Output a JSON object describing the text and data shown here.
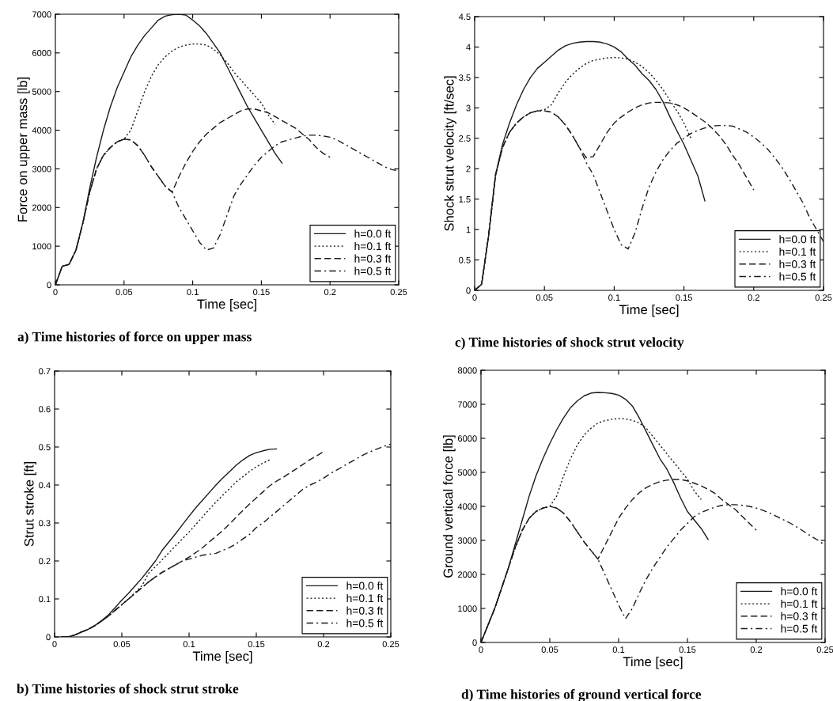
{
  "chart_data": [
    {
      "type": "line",
      "title": "a) Time histories of force on upper mass",
      "xlabel": "Time [sec]",
      "ylabel": "Force on upper mass [lb]",
      "x": [
        0,
        0.005,
        0.01,
        0.015,
        0.02,
        0.025,
        0.03,
        0.035,
        0.04,
        0.045,
        0.05,
        0.055,
        0.06,
        0.065,
        0.07,
        0.075,
        0.08,
        0.085,
        0.09,
        0.095,
        0.1,
        0.105,
        0.11,
        0.115,
        0.12,
        0.125,
        0.13,
        0.135,
        0.14,
        0.145,
        0.15,
        0.155,
        0.16,
        0.165,
        0.17,
        0.175,
        0.18,
        0.185,
        0.19,
        0.195,
        0.2,
        0.205,
        0.21,
        0.215,
        0.22,
        0.225,
        0.23,
        0.235,
        0.24,
        0.245,
        0.25
      ],
      "xlim": [
        0,
        0.25
      ],
      "xticks": [
        0,
        0.05,
        0.1,
        0.15,
        0.2,
        0.25
      ],
      "ylim": [
        0,
        7000
      ],
      "yticks": [
        0,
        1000,
        2000,
        3000,
        4000,
        5000,
        6000,
        7000
      ],
      "legend": "bottom right",
      "grid": false,
      "series": [
        {
          "name": "h=0.0 ft",
          "color": "#1a1a1a",
          "line_style": "solid",
          "values": [
            0,
            480,
            530,
            900,
            1600,
            2500,
            3300,
            4000,
            4600,
            5100,
            5500,
            5900,
            6200,
            6450,
            6650,
            6850,
            6950,
            6990,
            7000,
            6980,
            6850,
            6700,
            6500,
            6250,
            6000,
            5650,
            5300,
            4950,
            4600,
            4300,
            4000,
            3700,
            3400,
            3150,
            null,
            null,
            null,
            null,
            null,
            null,
            null,
            null,
            null,
            null,
            null,
            null,
            null,
            null,
            null,
            null,
            null
          ]
        },
        {
          "name": "h=0.1 ft",
          "color": "#1a1a1a",
          "line_style": "dotted",
          "values": [
            0,
            480,
            530,
            900,
            1600,
            2400,
            3000,
            3350,
            3550,
            3700,
            3770,
            4000,
            4500,
            5000,
            5400,
            5700,
            5900,
            6050,
            6150,
            6200,
            6230,
            6230,
            6200,
            6100,
            5950,
            5750,
            5500,
            5300,
            5100,
            4900,
            4700,
            4400,
            4150,
            null,
            null,
            null,
            null,
            null,
            null,
            null,
            null,
            null,
            null,
            null,
            null,
            null,
            null,
            null,
            null,
            null,
            null
          ]
        },
        {
          "name": "h=0.3 ft",
          "color": "#1a1a1a",
          "line_style": "dashed",
          "values": [
            0,
            480,
            530,
            900,
            1600,
            2400,
            3000,
            3350,
            3550,
            3700,
            3770,
            3750,
            3600,
            3350,
            3050,
            2800,
            2550,
            2400,
            2800,
            3150,
            3450,
            3700,
            3900,
            4050,
            4200,
            4300,
            4400,
            4500,
            4550,
            4550,
            4500,
            4450,
            4350,
            4250,
            4150,
            4050,
            3900,
            3750,
            3550,
            3400,
            3300,
            null,
            null,
            null,
            null,
            null,
            null,
            null,
            null,
            null,
            null
          ]
        },
        {
          "name": "h=0.5 ft",
          "color": "#1a1a1a",
          "line_style": "dashdot",
          "values": [
            0,
            480,
            530,
            900,
            1600,
            2400,
            3000,
            3350,
            3550,
            3700,
            3770,
            3750,
            3600,
            3350,
            3050,
            2800,
            2550,
            2400,
            2000,
            1700,
            1400,
            1100,
            900,
            950,
            1300,
            1800,
            2300,
            2600,
            2850,
            3100,
            3300,
            3450,
            3600,
            3700,
            3750,
            3800,
            3850,
            3870,
            3870,
            3850,
            3820,
            3750,
            3650,
            3550,
            3450,
            3350,
            3250,
            3150,
            3050,
            2980,
            2950
          ]
        }
      ]
    },
    {
      "type": "line",
      "title": "c) Time histories of shock strut velocity",
      "xlabel": "Time [sec]",
      "ylabel": "Shock strut velocity [ft/sec]",
      "x": [
        0,
        0.005,
        0.01,
        0.015,
        0.02,
        0.025,
        0.03,
        0.035,
        0.04,
        0.045,
        0.05,
        0.055,
        0.06,
        0.065,
        0.07,
        0.075,
        0.08,
        0.085,
        0.09,
        0.095,
        0.1,
        0.105,
        0.11,
        0.115,
        0.12,
        0.125,
        0.13,
        0.135,
        0.14,
        0.145,
        0.15,
        0.155,
        0.16,
        0.165,
        0.17,
        0.175,
        0.18,
        0.185,
        0.19,
        0.195,
        0.2,
        0.205,
        0.21,
        0.215,
        0.22,
        0.225,
        0.23,
        0.235,
        0.24,
        0.245,
        0.25
      ],
      "xlim": [
        0,
        0.25
      ],
      "xticks": [
        0,
        0.05,
        0.1,
        0.15,
        0.2,
        0.25
      ],
      "ylim": [
        0,
        4.5
      ],
      "yticks": [
        0,
        0.5,
        1,
        1.5,
        2,
        2.5,
        3,
        3.5,
        4,
        4.5
      ],
      "legend": "bottom right",
      "grid": false,
      "series": [
        {
          "name": "h=0.0 ft",
          "color": "#1a1a1a",
          "line_style": "solid",
          "values": [
            0,
            0.1,
            0.9,
            1.9,
            2.4,
            2.75,
            3.05,
            3.3,
            3.5,
            3.65,
            3.75,
            3.85,
            3.95,
            4.02,
            4.06,
            4.08,
            4.09,
            4.09,
            4.08,
            4.05,
            4.0,
            3.92,
            3.8,
            3.7,
            3.56,
            3.45,
            3.3,
            3.1,
            2.85,
            2.62,
            2.4,
            2.14,
            1.88,
            1.47,
            null,
            null,
            null,
            null,
            null,
            null,
            null,
            null,
            null,
            null,
            null,
            null,
            null,
            null,
            null,
            null,
            null
          ]
        },
        {
          "name": "h=0.1 ft",
          "color": "#1a1a1a",
          "line_style": "dotted",
          "values": [
            0,
            0.1,
            0.9,
            1.9,
            2.35,
            2.6,
            2.75,
            2.85,
            2.92,
            2.95,
            2.97,
            3.05,
            3.25,
            3.42,
            3.55,
            3.65,
            3.73,
            3.78,
            3.8,
            3.82,
            3.83,
            3.82,
            3.8,
            3.75,
            3.68,
            3.58,
            3.45,
            3.3,
            3.12,
            2.95,
            2.75,
            2.5,
            null,
            null,
            null,
            null,
            null,
            null,
            null,
            null,
            null,
            null,
            null,
            null,
            null,
            null,
            null,
            null,
            null,
            null,
            null
          ]
        },
        {
          "name": "h=0.3 ft",
          "color": "#1a1a1a",
          "line_style": "dashed",
          "values": [
            0,
            0.1,
            0.9,
            1.9,
            2.35,
            2.6,
            2.75,
            2.85,
            2.92,
            2.95,
            2.95,
            2.93,
            2.85,
            2.72,
            2.55,
            2.35,
            2.18,
            2.2,
            2.4,
            2.6,
            2.75,
            2.85,
            2.93,
            3.0,
            3.05,
            3.08,
            3.09,
            3.09,
            3.08,
            3.05,
            3.0,
            2.93,
            2.85,
            2.77,
            2.67,
            2.55,
            2.4,
            2.22,
            2.05,
            1.85,
            1.65,
            null,
            null,
            null,
            null,
            null,
            null,
            null,
            null,
            null,
            null
          ]
        },
        {
          "name": "h=0.5 ft",
          "color": "#1a1a1a",
          "line_style": "dashdot",
          "values": [
            0,
            0.1,
            0.9,
            1.9,
            2.35,
            2.6,
            2.75,
            2.85,
            2.92,
            2.95,
            2.95,
            2.93,
            2.85,
            2.72,
            2.55,
            2.35,
            2.1,
            1.9,
            1.6,
            1.3,
            1.0,
            0.75,
            0.68,
            0.95,
            1.35,
            1.7,
            1.95,
            2.15,
            2.3,
            2.42,
            2.5,
            2.58,
            2.63,
            2.67,
            2.7,
            2.71,
            2.71,
            2.7,
            2.65,
            2.6,
            2.52,
            2.43,
            2.32,
            2.18,
            2.03,
            1.85,
            1.65,
            1.45,
            1.2,
            1.0,
            0.8
          ]
        }
      ]
    },
    {
      "type": "line",
      "title": "b) Time histories of shock strut stroke",
      "xlabel": "Time [sec]",
      "ylabel": "Strut stroke [ft]",
      "x": [
        0.005,
        0.01,
        0.015,
        0.02,
        0.025,
        0.03,
        0.035,
        0.04,
        0.045,
        0.05,
        0.055,
        0.06,
        0.065,
        0.07,
        0.075,
        0.08,
        0.085,
        0.09,
        0.095,
        0.1,
        0.105,
        0.11,
        0.115,
        0.12,
        0.125,
        0.13,
        0.135,
        0.14,
        0.145,
        0.15,
        0.155,
        0.16,
        0.165,
        0.17,
        0.175,
        0.18,
        0.185,
        0.19,
        0.195,
        0.2,
        0.205,
        0.21,
        0.215,
        0.22,
        0.225,
        0.23,
        0.235,
        0.24,
        0.245,
        0.25
      ],
      "xlim": [
        0,
        0.25
      ],
      "xticks": [
        0,
        0.05,
        0.1,
        0.15,
        0.2,
        0.25
      ],
      "ylim": [
        0,
        0.7
      ],
      "yticks": [
        0,
        0.1,
        0.2,
        0.3,
        0.4,
        0.5,
        0.6,
        0.7
      ],
      "legend": "bottom right",
      "grid": false,
      "series": [
        {
          "name": "h=0.0 ft",
          "color": "#1a1a1a",
          "line_style": "solid",
          "values": [
            0,
            0,
            0.005,
            0.013,
            0.02,
            0.03,
            0.043,
            0.058,
            0.077,
            0.097,
            0.115,
            0.135,
            0.155,
            0.177,
            0.2,
            0.228,
            0.25,
            0.272,
            0.295,
            0.318,
            0.34,
            0.36,
            0.38,
            0.4,
            0.418,
            0.435,
            0.452,
            0.466,
            0.478,
            0.485,
            0.49,
            0.494,
            0.495,
            null,
            null,
            null,
            null,
            null,
            null,
            null,
            null,
            null,
            null,
            null,
            null,
            null,
            null,
            null,
            null,
            null
          ]
        },
        {
          "name": "h=0.1 ft",
          "color": "#1a1a1a",
          "line_style": "dotted",
          "values": [
            0,
            0,
            0.005,
            0.013,
            0.02,
            0.03,
            0.042,
            0.055,
            0.07,
            0.085,
            0.1,
            0.117,
            0.135,
            0.168,
            0.185,
            0.203,
            0.222,
            0.24,
            0.258,
            0.276,
            0.296,
            0.316,
            0.336,
            0.355,
            0.373,
            0.39,
            0.408,
            0.422,
            0.436,
            0.448,
            0.458,
            0.466,
            null,
            null,
            null,
            null,
            null,
            null,
            null,
            null,
            null,
            null,
            null,
            null,
            null,
            null,
            null,
            null,
            null,
            null
          ]
        },
        {
          "name": "h=0.3 ft",
          "color": "#1a1a1a",
          "line_style": "dashed",
          "values": [
            0,
            0,
            0.005,
            0.013,
            0.02,
            0.03,
            0.042,
            0.055,
            0.07,
            0.085,
            0.1,
            0.115,
            0.13,
            0.145,
            0.158,
            0.17,
            0.18,
            0.19,
            0.2,
            0.21,
            0.222,
            0.235,
            0.25,
            0.265,
            0.28,
            0.297,
            0.315,
            0.333,
            0.35,
            0.366,
            0.382,
            0.398,
            0.41,
            0.42,
            0.432,
            0.443,
            0.455,
            0.467,
            0.477,
            0.488,
            null,
            null,
            null,
            null,
            null,
            null,
            null,
            null,
            null,
            null
          ]
        },
        {
          "name": "h=0.5 ft",
          "color": "#1a1a1a",
          "line_style": "dashdot",
          "values": [
            0,
            0,
            0.005,
            0.013,
            0.02,
            0.03,
            0.042,
            0.055,
            0.07,
            0.085,
            0.1,
            0.115,
            0.13,
            0.145,
            0.158,
            0.17,
            0.18,
            0.19,
            0.2,
            0.205,
            0.21,
            0.215,
            0.218,
            0.22,
            0.228,
            0.235,
            0.245,
            0.258,
            0.27,
            0.288,
            0.3,
            0.315,
            0.33,
            0.345,
            0.36,
            0.375,
            0.39,
            0.4,
            0.408,
            0.418,
            0.43,
            0.44,
            0.45,
            0.46,
            0.47,
            0.48,
            0.488,
            0.495,
            0.502,
            0.508
          ]
        }
      ]
    },
    {
      "type": "line",
      "title": "d) Time histories of ground vertical force",
      "xlabel": "Time [sec]",
      "ylabel": "Ground vertical force [lb]",
      "x": [
        0,
        0.005,
        0.01,
        0.015,
        0.02,
        0.025,
        0.03,
        0.035,
        0.04,
        0.045,
        0.05,
        0.055,
        0.06,
        0.065,
        0.07,
        0.075,
        0.08,
        0.085,
        0.09,
        0.095,
        0.1,
        0.105,
        0.11,
        0.115,
        0.12,
        0.125,
        0.13,
        0.135,
        0.14,
        0.145,
        0.15,
        0.155,
        0.16,
        0.165,
        0.17,
        0.175,
        0.18,
        0.185,
        0.19,
        0.195,
        0.2,
        0.205,
        0.21,
        0.215,
        0.22,
        0.225,
        0.23,
        0.235,
        0.24,
        0.245,
        0.25
      ],
      "xlim": [
        0,
        0.25
      ],
      "xticks": [
        0,
        0.05,
        0.1,
        0.15,
        0.2,
        0.25
      ],
      "ylim": [
        0,
        8000
      ],
      "yticks": [
        0,
        1000,
        2000,
        3000,
        4000,
        5000,
        6000,
        7000,
        8000
      ],
      "legend": "bottom right",
      "grid": false,
      "series": [
        {
          "name": "h=0.0 ft",
          "color": "#1a1a1a",
          "line_style": "solid",
          "values": [
            0,
            500,
            1000,
            1600,
            2200,
            2900,
            3600,
            4300,
            4900,
            5400,
            5850,
            6250,
            6600,
            6900,
            7100,
            7250,
            7330,
            7350,
            7340,
            7320,
            7270,
            7150,
            6950,
            6600,
            6200,
            5800,
            5400,
            5100,
            4700,
            4250,
            3850,
            3600,
            3350,
            3030,
            null,
            null,
            null,
            null,
            null,
            null,
            null,
            null,
            null,
            null,
            null,
            null,
            null,
            null,
            null,
            null,
            null
          ]
        },
        {
          "name": "h=0.1 ft",
          "color": "#1a1a1a",
          "line_style": "dotted",
          "values": [
            0,
            500,
            1000,
            1600,
            2200,
            2800,
            3300,
            3650,
            3850,
            3950,
            4000,
            4300,
            4900,
            5400,
            5800,
            6100,
            6300,
            6450,
            6520,
            6560,
            6580,
            6570,
            6530,
            6450,
            6300,
            6050,
            5800,
            5550,
            5300,
            5050,
            4800,
            4450,
            4200,
            null,
            null,
            null,
            null,
            null,
            null,
            null,
            null,
            null,
            null,
            null,
            null,
            null,
            null,
            null,
            null,
            null,
            null
          ]
        },
        {
          "name": "h=0.3 ft",
          "color": "#1a1a1a",
          "line_style": "dashed",
          "values": [
            0,
            500,
            1000,
            1600,
            2200,
            2800,
            3300,
            3650,
            3850,
            3950,
            4000,
            3950,
            3800,
            3550,
            3250,
            2950,
            2700,
            2450,
            2850,
            3250,
            3650,
            3950,
            4200,
            4400,
            4550,
            4650,
            4730,
            4770,
            4790,
            4790,
            4750,
            4680,
            4600,
            4500,
            4380,
            4200,
            4050,
            3900,
            3700,
            3500,
            3300,
            null,
            null,
            null,
            null,
            null,
            null,
            null,
            null,
            null,
            null
          ]
        },
        {
          "name": "h=0.5 ft",
          "color": "#1a1a1a",
          "line_style": "dashdot",
          "values": [
            0,
            500,
            1000,
            1600,
            2200,
            2800,
            3300,
            3650,
            3850,
            3950,
            4000,
            3950,
            3800,
            3550,
            3250,
            2950,
            2700,
            2450,
            2000,
            1550,
            1100,
            700,
            1000,
            1450,
            1850,
            2200,
            2500,
            2800,
            3050,
            3300,
            3500,
            3700,
            3820,
            3900,
            3980,
            4030,
            4050,
            4050,
            4030,
            4000,
            3950,
            3880,
            3800,
            3700,
            3600,
            3500,
            3380,
            3250,
            3120,
            3000,
            2850
          ]
        }
      ]
    }
  ]
}
